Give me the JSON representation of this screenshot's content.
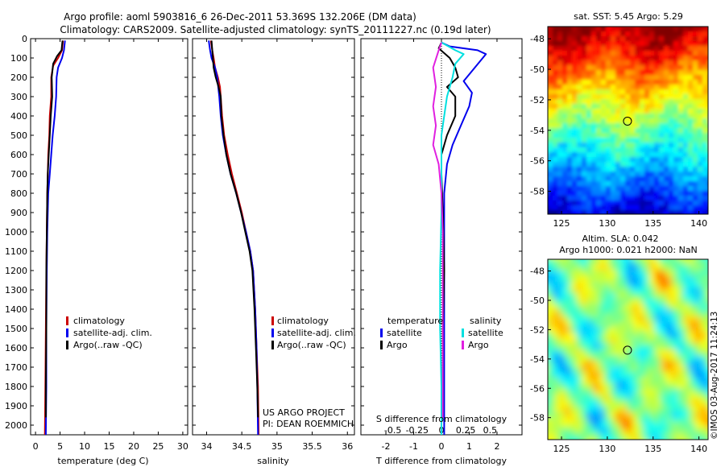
{
  "title_line1": "Argo profile: aoml 5903816_6 26-Dec-2011 53.369S 132.206E (DM data)",
  "title_line2": "Climatology: CARS2009. Satellite-adjusted climatology: synTS_20111227.nc (0.19d later)",
  "colors": {
    "climatology": "#cc0000",
    "satellite": "#0000ee",
    "argo": "#000000",
    "satellite_salinity": "#00e0e0",
    "argo_salinity": "#e020e0"
  },
  "chart_data": [
    {
      "type": "line",
      "id": "temperature",
      "xlabel": "temperature (deg C)",
      "xlim": [
        -1,
        31
      ],
      "ylim": [
        2050,
        0
      ],
      "xticks": [
        "0",
        "5",
        "10",
        "15",
        "20",
        "25",
        "30"
      ],
      "yticks": [
        "0",
        "100",
        "200",
        "300",
        "400",
        "500",
        "600",
        "700",
        "800",
        "900",
        "1000",
        "1100",
        "1200",
        "1300",
        "1400",
        "1500",
        "1600",
        "1700",
        "1800",
        "1900",
        "2000"
      ],
      "legend": [
        "climatology",
        "satellite-adj. clim.",
        "Argo(..raw -QC)"
      ],
      "series": [
        {
          "name": "climatology",
          "color": "climatology",
          "points": [
            [
              5.6,
              10
            ],
            [
              5.4,
              60
            ],
            [
              4.6,
              100
            ],
            [
              3.6,
              140
            ],
            [
              3.2,
              200
            ],
            [
              3.2,
              300
            ],
            [
              2.9,
              400
            ],
            [
              2.8,
              500
            ],
            [
              2.6,
              600
            ],
            [
              2.5,
              700
            ],
            [
              2.4,
              800
            ],
            [
              2.3,
              1000
            ],
            [
              2.2,
              1200
            ],
            [
              2.1,
              1500
            ],
            [
              2.0,
              1800
            ],
            [
              1.9,
              2050
            ]
          ]
        },
        {
          "name": "satellite-adj. clim.",
          "color": "satellite",
          "points": [
            [
              6.0,
              10
            ],
            [
              5.8,
              60
            ],
            [
              5.4,
              100
            ],
            [
              4.6,
              150
            ],
            [
              4.3,
              200
            ],
            [
              4.2,
              300
            ],
            [
              3.9,
              400
            ],
            [
              3.5,
              500
            ],
            [
              3.2,
              600
            ],
            [
              2.9,
              700
            ],
            [
              2.6,
              800
            ],
            [
              2.4,
              1000
            ],
            [
              2.3,
              1200
            ],
            [
              2.2,
              1500
            ],
            [
              2.2,
              1800
            ],
            [
              2.1,
              2050
            ]
          ]
        },
        {
          "name": "Argo(..raw -QC)",
          "color": "argo",
          "points": [
            [
              5.5,
              10
            ],
            [
              5.3,
              60
            ],
            [
              4.4,
              90
            ],
            [
              3.6,
              130
            ],
            [
              3.3,
              200
            ],
            [
              3.4,
              300
            ],
            [
              3.1,
              400
            ],
            [
              2.9,
              500
            ],
            [
              2.7,
              600
            ],
            [
              2.5,
              700
            ],
            [
              2.4,
              800
            ],
            [
              2.3,
              1000
            ],
            [
              2.2,
              1200
            ],
            [
              2.2,
              1500
            ],
            [
              2.1,
              1800
            ],
            [
              2.1,
              1960
            ]
          ]
        }
      ]
    },
    {
      "type": "line",
      "id": "salinity",
      "xlabel": "salinity",
      "xlim": [
        33.8,
        36.1
      ],
      "ylim": [
        2050,
        0
      ],
      "xticks": [
        "34",
        "34.5",
        "35",
        "35.5",
        "36"
      ],
      "legend": [
        "climatology",
        "satellite-adj. clim.",
        "Argo(..raw -QC)"
      ],
      "annotation": [
        "US ARGO PROJECT",
        "PI: DEAN ROEMMICH"
      ],
      "series": [
        {
          "name": "climatology",
          "color": "climatology",
          "points": [
            [
              34.06,
              10
            ],
            [
              34.08,
              60
            ],
            [
              34.1,
              100
            ],
            [
              34.12,
              150
            ],
            [
              34.16,
              200
            ],
            [
              34.19,
              250
            ],
            [
              34.2,
              300
            ],
            [
              34.22,
              400
            ],
            [
              34.25,
              500
            ],
            [
              34.3,
              600
            ],
            [
              34.36,
              700
            ],
            [
              34.43,
              800
            ],
            [
              34.5,
              900
            ],
            [
              34.56,
              1000
            ],
            [
              34.62,
              1100
            ],
            [
              34.66,
              1200
            ],
            [
              34.69,
              1400
            ],
            [
              34.71,
              1600
            ],
            [
              34.73,
              1800
            ],
            [
              34.74,
              2050
            ]
          ]
        },
        {
          "name": "satellite-adj. clim.",
          "color": "satellite",
          "points": [
            [
              34.03,
              10
            ],
            [
              34.05,
              60
            ],
            [
              34.07,
              100
            ],
            [
              34.12,
              150
            ],
            [
              34.15,
              200
            ],
            [
              34.18,
              300
            ],
            [
              34.2,
              400
            ],
            [
              34.23,
              500
            ],
            [
              34.28,
              600
            ],
            [
              34.34,
              700
            ],
            [
              34.42,
              800
            ],
            [
              34.49,
              900
            ],
            [
              34.56,
              1000
            ],
            [
              34.62,
              1100
            ],
            [
              34.66,
              1200
            ],
            [
              34.69,
              1400
            ],
            [
              34.71,
              1600
            ],
            [
              34.72,
              1800
            ],
            [
              34.73,
              2050
            ]
          ]
        },
        {
          "name": "Argo(..raw -QC)",
          "color": "argo",
          "points": [
            [
              34.07,
              10
            ],
            [
              34.08,
              60
            ],
            [
              34.09,
              100
            ],
            [
              34.1,
              150
            ],
            [
              34.13,
              200
            ],
            [
              34.17,
              250
            ],
            [
              34.2,
              300
            ],
            [
              34.21,
              400
            ],
            [
              34.24,
              500
            ],
            [
              34.28,
              600
            ],
            [
              34.34,
              700
            ],
            [
              34.42,
              800
            ],
            [
              34.49,
              900
            ],
            [
              34.55,
              1000
            ],
            [
              34.61,
              1100
            ],
            [
              34.65,
              1200
            ],
            [
              34.68,
              1400
            ],
            [
              34.7,
              1600
            ],
            [
              34.72,
              1800
            ],
            [
              34.73,
              1960
            ]
          ]
        }
      ]
    },
    {
      "type": "line",
      "id": "difference",
      "xlabel": "T difference from climatology",
      "xlabel_top": "S difference from climatology",
      "xlim": [
        -2.9,
        2.9
      ],
      "ylim": [
        2050,
        0
      ],
      "xticks": [
        "-2",
        "-1",
        "0",
        "1",
        "2"
      ],
      "xticks_top": [
        "-0.5",
        "-0.25",
        "0",
        "0.25",
        "0.5"
      ],
      "legend_titles": [
        "temperature",
        "salinity"
      ],
      "legend": [
        "satellite",
        "Argo",
        "satellite",
        "Argo"
      ],
      "series": [
        {
          "name": "satellite",
          "group": "temperature",
          "color": "satellite",
          "points": [
            [
              0,
              20
            ],
            [
              0.3,
              40
            ],
            [
              1.3,
              60
            ],
            [
              1.6,
              80
            ],
            [
              1.2,
              150
            ],
            [
              0.8,
              220
            ],
            [
              1.1,
              280
            ],
            [
              1.0,
              350
            ],
            [
              0.7,
              450
            ],
            [
              0.4,
              550
            ],
            [
              0.2,
              650
            ],
            [
              0.1,
              800
            ],
            [
              0.1,
              1000
            ],
            [
              0.1,
              1300
            ],
            [
              0.1,
              1600
            ],
            [
              0.1,
              2050
            ]
          ]
        },
        {
          "name": "Argo",
          "group": "temperature",
          "color": "argo",
          "points": [
            [
              0,
              20
            ],
            [
              -0.1,
              50
            ],
            [
              0.3,
              100
            ],
            [
              0.5,
              150
            ],
            [
              0.6,
              200
            ],
            [
              0.2,
              250
            ],
            [
              0.5,
              300
            ],
            [
              0.5,
              400
            ],
            [
              0.2,
              500
            ],
            [
              0,
              600
            ],
            [
              0,
              700
            ],
            [
              0.05,
              900
            ],
            [
              0.1,
              1200
            ],
            [
              0.05,
              1500
            ],
            [
              0.05,
              1800
            ],
            [
              0.05,
              1960
            ]
          ]
        },
        {
          "name": "satellite",
          "group": "salinity",
          "color": "satellite_salinity",
          "points": [
            [
              0,
              20
            ],
            [
              0.5,
              60
            ],
            [
              0.8,
              80
            ],
            [
              0.5,
              130
            ],
            [
              0.4,
              200
            ],
            [
              0.2,
              300
            ],
            [
              0.1,
              400
            ],
            [
              0,
              500
            ],
            [
              0,
              700
            ],
            [
              0,
              900
            ],
            [
              -0.05,
              1200
            ],
            [
              -0.05,
              1500
            ],
            [
              0,
              1800
            ],
            [
              0,
              2050
            ]
          ]
        },
        {
          "name": "Argo",
          "group": "salinity",
          "color": "argo_salinity",
          "points": [
            [
              0,
              20
            ],
            [
              -0.1,
              60
            ],
            [
              -0.3,
              150
            ],
            [
              -0.2,
              250
            ],
            [
              -0.3,
              350
            ],
            [
              -0.2,
              450
            ],
            [
              -0.3,
              550
            ],
            [
              -0.1,
              650
            ],
            [
              0,
              800
            ],
            [
              0.05,
              1000
            ],
            [
              0.05,
              1200
            ],
            [
              0.05,
              1500
            ],
            [
              0.05,
              1800
            ],
            [
              0.05,
              1960
            ]
          ]
        }
      ]
    },
    {
      "type": "heatmap",
      "id": "sst",
      "title": "sat. SST: 5.45 Argo: 5.29",
      "xticks": [
        "125",
        "130",
        "135",
        "140"
      ],
      "yticks": [
        "-48",
        "-50",
        "-52",
        "-54",
        "-56",
        "-58"
      ],
      "xlim": [
        123.5,
        141
      ],
      "ylim": [
        -59.5,
        -47.2
      ],
      "marker": [
        132.2,
        -53.4
      ]
    },
    {
      "type": "heatmap",
      "id": "sla",
      "title_line1": "Altim. SLA: 0.042",
      "title_line2": "Argo h1000: 0.021 h2000: NaN",
      "xticks": [
        "125",
        "130",
        "135",
        "140"
      ],
      "yticks": [
        "-48",
        "-50",
        "-52",
        "-54",
        "-56",
        "-58"
      ],
      "xlim": [
        123.5,
        141
      ],
      "ylim": [
        -59.5,
        -47.2
      ],
      "marker": [
        132.2,
        -53.4
      ]
    }
  ],
  "footer": "©IMOS 03-Aug-2017 11:24:13"
}
